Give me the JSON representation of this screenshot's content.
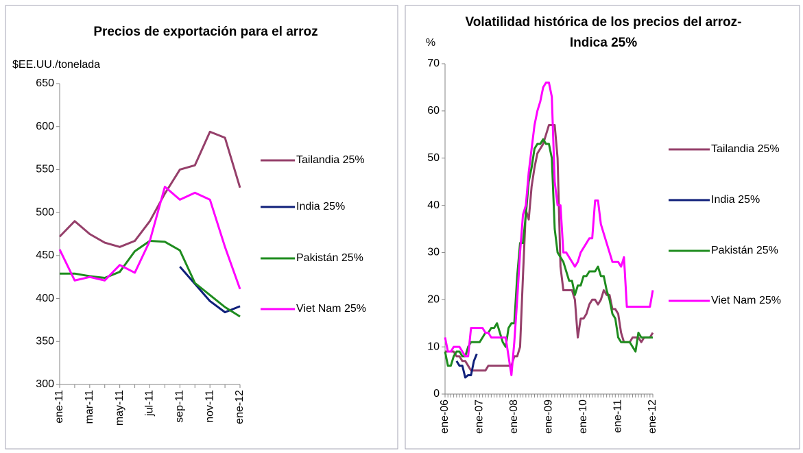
{
  "chart_data": [
    {
      "type": "line",
      "title": "Precios de exportación para el arroz",
      "ylabel": "$EE.UU./tonelada",
      "categories": [
        "ene-11",
        null,
        "mar-11",
        null,
        "may-11",
        null,
        "jul-11",
        null,
        "sep-11",
        null,
        "nov-11",
        null,
        "ene-12"
      ],
      "ylim": [
        300,
        650
      ],
      "yticks": [
        300,
        350,
        400,
        450,
        500,
        550,
        600,
        650
      ],
      "grid": false,
      "legend": "right",
      "series": [
        {
          "name": "Tailandia 25%",
          "color": "#953f6a",
          "values": [
            472,
            490,
            475,
            465,
            460,
            467,
            490,
            522,
            550,
            555,
            594,
            587,
            529
          ]
        },
        {
          "name": "India 25%",
          "color": "#0f1f7a",
          "values": [
            null,
            null,
            null,
            null,
            null,
            null,
            null,
            null,
            437,
            417,
            397,
            384,
            391
          ]
        },
        {
          "name": "Pakistán 25%",
          "color": "#1e8c1e",
          "values": [
            429,
            429,
            426,
            424,
            431,
            455,
            467,
            466,
            456,
            418,
            404,
            390,
            379
          ]
        },
        {
          "name": "Viet Nam 25%",
          "color": "#ff00ff",
          "values": [
            457,
            421,
            425,
            421,
            439,
            430,
            467,
            530,
            515,
            523,
            515,
            460,
            411
          ]
        }
      ]
    },
    {
      "type": "line",
      "title": "Volatilidad histórica de los precios del arroz- Indica 25%",
      "ylabel": "%",
      "categories": [
        "ene-06",
        null,
        null,
        null,
        null,
        null,
        null,
        null,
        null,
        null,
        null,
        null,
        "ene-07",
        null,
        null,
        null,
        null,
        null,
        null,
        null,
        null,
        null,
        null,
        null,
        "ene-08",
        null,
        null,
        null,
        null,
        null,
        null,
        null,
        null,
        null,
        null,
        null,
        "ene-09",
        null,
        null,
        null,
        null,
        null,
        null,
        null,
        null,
        null,
        null,
        null,
        "ene-10",
        null,
        null,
        null,
        null,
        null,
        null,
        null,
        null,
        null,
        null,
        null,
        "ene-11",
        null,
        null,
        null,
        null,
        null,
        null,
        null,
        null,
        null,
        null,
        null,
        "ene-12"
      ],
      "ylim": [
        0,
        70
      ],
      "yticks": [
        0,
        10,
        20,
        30,
        40,
        50,
        60,
        70
      ],
      "grid": false,
      "legend": "right",
      "series": [
        {
          "name": "Tailandia 25%",
          "color": "#953f6a",
          "values": [
            9,
            9,
            9,
            9,
            8,
            8,
            7,
            7,
            6,
            5,
            5,
            5,
            5,
            5,
            5,
            6,
            6,
            6,
            6,
            6,
            6,
            6,
            6,
            6,
            8,
            8,
            10,
            25,
            39,
            37,
            44,
            48,
            51,
            52,
            53,
            55,
            57,
            57,
            57,
            50,
            27,
            22,
            22,
            22,
            22,
            20,
            12,
            16,
            16,
            17,
            19,
            20,
            20,
            19,
            20,
            22,
            21,
            21,
            18,
            18,
            17,
            13,
            11,
            11,
            11,
            12,
            12,
            12,
            11,
            12,
            12,
            12,
            13
          ]
        },
        {
          "name": "India 25%",
          "color": "#0f1f7a",
          "values": [
            null,
            null,
            null,
            null,
            7,
            6,
            6,
            3.5,
            4,
            4,
            7,
            8.5,
            null,
            null,
            null,
            null,
            null,
            null,
            null,
            null,
            null,
            null,
            null,
            null,
            null,
            null,
            null,
            null,
            null,
            null,
            null,
            null,
            null,
            null,
            null,
            null,
            null,
            null,
            null,
            null,
            null,
            null,
            null,
            null,
            null,
            null,
            null,
            null,
            null,
            null,
            null,
            null,
            null,
            null,
            null,
            null,
            null,
            null,
            null,
            null,
            null,
            null,
            null,
            null,
            null,
            null,
            null,
            null,
            null,
            null,
            null,
            null,
            null
          ]
        },
        {
          "name": "Pakistán 25%",
          "color": "#1e8c1e",
          "values": [
            9,
            6,
            6,
            8,
            9,
            9,
            8,
            8,
            10,
            11,
            11,
            11,
            11,
            12,
            13,
            13,
            14,
            14,
            15,
            13,
            11,
            10,
            14,
            15,
            15,
            25,
            32,
            32,
            38,
            45,
            48,
            52,
            53,
            53,
            54,
            53,
            53,
            50,
            35,
            30,
            29,
            28,
            26,
            24,
            24,
            21,
            23,
            23,
            25,
            25,
            26,
            26,
            26,
            27,
            25,
            25,
            22,
            20,
            17,
            16,
            12,
            11,
            11,
            11,
            11,
            10,
            9,
            13,
            12,
            12,
            12,
            12,
            12
          ]
        },
        {
          "name": "Viet Nam 25%",
          "color": "#ff00ff",
          "values": [
            12,
            9,
            9,
            10,
            10,
            10,
            9,
            8,
            8,
            14,
            14,
            14,
            14,
            14,
            13,
            13,
            12,
            12,
            12,
            12,
            12,
            12,
            8,
            4,
            11,
            20,
            30,
            38,
            40,
            47,
            52,
            57,
            60,
            62,
            65,
            66,
            66,
            63,
            45,
            40,
            40,
            30,
            30,
            29,
            28,
            27,
            28,
            30,
            31,
            32,
            33,
            33,
            41,
            41,
            36,
            34,
            32,
            30,
            28,
            28,
            28,
            27,
            29,
            18.5,
            18.5,
            18.5,
            18.5,
            18.5,
            18.5,
            18.5,
            18.5,
            18.5,
            22
          ]
        }
      ]
    }
  ]
}
